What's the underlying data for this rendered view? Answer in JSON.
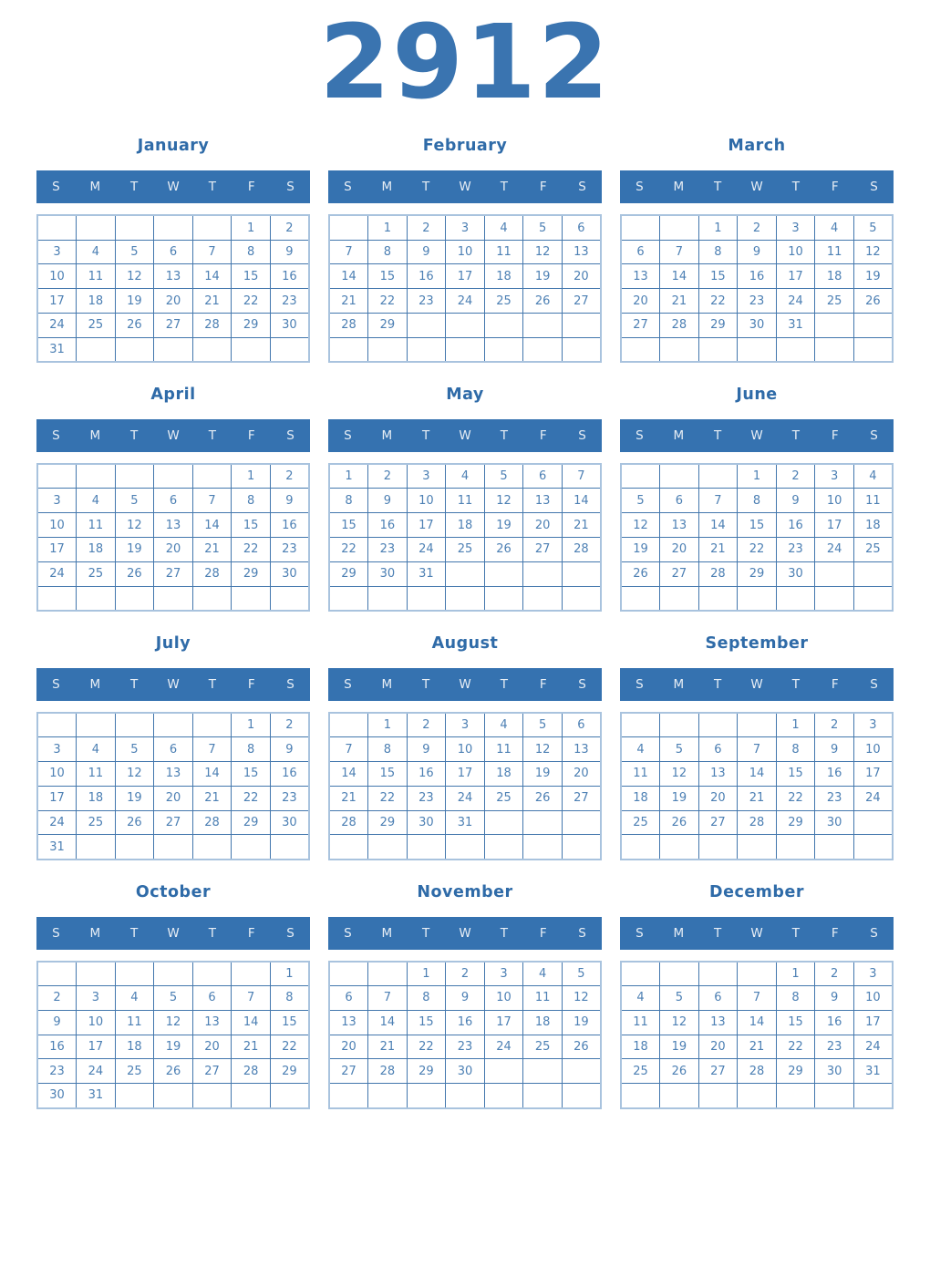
{
  "year": "2912",
  "weekday_headers": [
    "S",
    "M",
    "T",
    "W",
    "T",
    "F",
    "S"
  ],
  "colors": {
    "accent_blue": "#3572b0",
    "weekday_band_background": "#3572b0",
    "weekday_band_text": "#e8eef5",
    "day_number_text": "#4d80b4",
    "grid_inner_border": "#4377ad",
    "grid_outer_border": "#a9c3de",
    "month_title_text": "#2f6ba8",
    "year_title_text": "#3a74b0",
    "page_background": "#ffffff"
  },
  "months": [
    {
      "name": "January",
      "weeks": [
        [
          "",
          "",
          "",
          "",
          "",
          "1",
          "2"
        ],
        [
          "3",
          "4",
          "5",
          "6",
          "7",
          "8",
          "9"
        ],
        [
          "10",
          "11",
          "12",
          "13",
          "14",
          "15",
          "16"
        ],
        [
          "17",
          "18",
          "19",
          "20",
          "21",
          "22",
          "23"
        ],
        [
          "24",
          "25",
          "26",
          "27",
          "28",
          "29",
          "30"
        ],
        [
          "31",
          "",
          "",
          "",
          "",
          "",
          ""
        ]
      ]
    },
    {
      "name": "February",
      "weeks": [
        [
          "",
          "1",
          "2",
          "3",
          "4",
          "5",
          "6"
        ],
        [
          "7",
          "8",
          "9",
          "10",
          "11",
          "12",
          "13"
        ],
        [
          "14",
          "15",
          "16",
          "17",
          "18",
          "19",
          "20"
        ],
        [
          "21",
          "22",
          "23",
          "24",
          "25",
          "26",
          "27"
        ],
        [
          "28",
          "29",
          "",
          "",
          "",
          "",
          ""
        ],
        [
          "",
          "",
          "",
          "",
          "",
          "",
          ""
        ]
      ]
    },
    {
      "name": "March",
      "weeks": [
        [
          "",
          "",
          "1",
          "2",
          "3",
          "4",
          "5"
        ],
        [
          "6",
          "7",
          "8",
          "9",
          "10",
          "11",
          "12"
        ],
        [
          "13",
          "14",
          "15",
          "16",
          "17",
          "18",
          "19"
        ],
        [
          "20",
          "21",
          "22",
          "23",
          "24",
          "25",
          "26"
        ],
        [
          "27",
          "28",
          "29",
          "30",
          "31",
          "",
          ""
        ],
        [
          "",
          "",
          "",
          "",
          "",
          "",
          ""
        ]
      ]
    },
    {
      "name": "April",
      "weeks": [
        [
          "",
          "",
          "",
          "",
          "",
          "1",
          "2"
        ],
        [
          "3",
          "4",
          "5",
          "6",
          "7",
          "8",
          "9"
        ],
        [
          "10",
          "11",
          "12",
          "13",
          "14",
          "15",
          "16"
        ],
        [
          "17",
          "18",
          "19",
          "20",
          "21",
          "22",
          "23"
        ],
        [
          "24",
          "25",
          "26",
          "27",
          "28",
          "29",
          "30"
        ],
        [
          "",
          "",
          "",
          "",
          "",
          "",
          ""
        ]
      ]
    },
    {
      "name": "May",
      "weeks": [
        [
          "1",
          "2",
          "3",
          "4",
          "5",
          "6",
          "7"
        ],
        [
          "8",
          "9",
          "10",
          "11",
          "12",
          "13",
          "14"
        ],
        [
          "15",
          "16",
          "17",
          "18",
          "19",
          "20",
          "21"
        ],
        [
          "22",
          "23",
          "24",
          "25",
          "26",
          "27",
          "28"
        ],
        [
          "29",
          "30",
          "31",
          "",
          "",
          "",
          ""
        ],
        [
          "",
          "",
          "",
          "",
          "",
          "",
          ""
        ]
      ]
    },
    {
      "name": "June",
      "weeks": [
        [
          "",
          "",
          "",
          "1",
          "2",
          "3",
          "4"
        ],
        [
          "5",
          "6",
          "7",
          "8",
          "9",
          "10",
          "11"
        ],
        [
          "12",
          "13",
          "14",
          "15",
          "16",
          "17",
          "18"
        ],
        [
          "19",
          "20",
          "21",
          "22",
          "23",
          "24",
          "25"
        ],
        [
          "26",
          "27",
          "28",
          "29",
          "30",
          "",
          ""
        ],
        [
          "",
          "",
          "",
          "",
          "",
          "",
          ""
        ]
      ]
    },
    {
      "name": "July",
      "weeks": [
        [
          "",
          "",
          "",
          "",
          "",
          "1",
          "2"
        ],
        [
          "3",
          "4",
          "5",
          "6",
          "7",
          "8",
          "9"
        ],
        [
          "10",
          "11",
          "12",
          "13",
          "14",
          "15",
          "16"
        ],
        [
          "17",
          "18",
          "19",
          "20",
          "21",
          "22",
          "23"
        ],
        [
          "24",
          "25",
          "26",
          "27",
          "28",
          "29",
          "30"
        ],
        [
          "31",
          "",
          "",
          "",
          "",
          "",
          ""
        ]
      ]
    },
    {
      "name": "August",
      "weeks": [
        [
          "",
          "1",
          "2",
          "3",
          "4",
          "5",
          "6"
        ],
        [
          "7",
          "8",
          "9",
          "10",
          "11",
          "12",
          "13"
        ],
        [
          "14",
          "15",
          "16",
          "17",
          "18",
          "19",
          "20"
        ],
        [
          "21",
          "22",
          "23",
          "24",
          "25",
          "26",
          "27"
        ],
        [
          "28",
          "29",
          "30",
          "31",
          "",
          "",
          ""
        ],
        [
          "",
          "",
          "",
          "",
          "",
          "",
          ""
        ]
      ]
    },
    {
      "name": "September",
      "weeks": [
        [
          "",
          "",
          "",
          "",
          "1",
          "2",
          "3"
        ],
        [
          "4",
          "5",
          "6",
          "7",
          "8",
          "9",
          "10"
        ],
        [
          "11",
          "12",
          "13",
          "14",
          "15",
          "16",
          "17"
        ],
        [
          "18",
          "19",
          "20",
          "21",
          "22",
          "23",
          "24"
        ],
        [
          "25",
          "26",
          "27",
          "28",
          "29",
          "30",
          ""
        ],
        [
          "",
          "",
          "",
          "",
          "",
          "",
          ""
        ]
      ]
    },
    {
      "name": "October",
      "weeks": [
        [
          "",
          "",
          "",
          "",
          "",
          "",
          "1"
        ],
        [
          "2",
          "3",
          "4",
          "5",
          "6",
          "7",
          "8"
        ],
        [
          "9",
          "10",
          "11",
          "12",
          "13",
          "14",
          "15"
        ],
        [
          "16",
          "17",
          "18",
          "19",
          "20",
          "21",
          "22"
        ],
        [
          "23",
          "24",
          "25",
          "26",
          "27",
          "28",
          "29"
        ],
        [
          "30",
          "31",
          "",
          "",
          "",
          "",
          ""
        ]
      ]
    },
    {
      "name": "November",
      "weeks": [
        [
          "",
          "",
          "1",
          "2",
          "3",
          "4",
          "5"
        ],
        [
          "6",
          "7",
          "8",
          "9",
          "10",
          "11",
          "12"
        ],
        [
          "13",
          "14",
          "15",
          "16",
          "17",
          "18",
          "19"
        ],
        [
          "20",
          "21",
          "22",
          "23",
          "24",
          "25",
          "26"
        ],
        [
          "27",
          "28",
          "29",
          "30",
          "",
          "",
          ""
        ],
        [
          "",
          "",
          "",
          "",
          "",
          "",
          ""
        ]
      ]
    },
    {
      "name": "December",
      "weeks": [
        [
          "",
          "",
          "",
          "",
          "1",
          "2",
          "3"
        ],
        [
          "4",
          "5",
          "6",
          "7",
          "8",
          "9",
          "10"
        ],
        [
          "11",
          "12",
          "13",
          "14",
          "15",
          "16",
          "17"
        ],
        [
          "18",
          "19",
          "20",
          "21",
          "22",
          "23",
          "24"
        ],
        [
          "25",
          "26",
          "27",
          "28",
          "29",
          "30",
          "31"
        ],
        [
          "",
          "",
          "",
          "",
          "",
          "",
          ""
        ]
      ]
    }
  ]
}
